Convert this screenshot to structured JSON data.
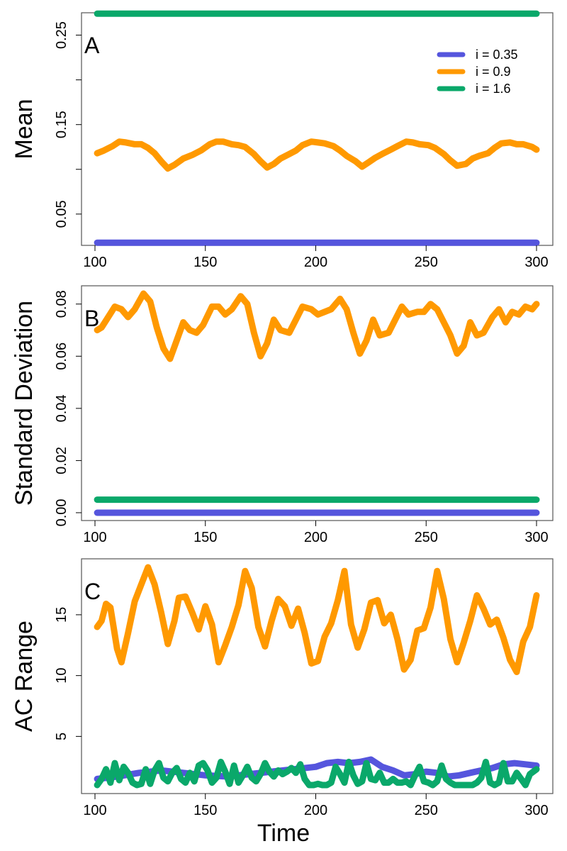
{
  "chart_data": [
    {
      "type": "line",
      "panel_label": "A",
      "ylabel": "Mean",
      "xlabel": "",
      "xlim": [
        100,
        300
      ],
      "ylim": [
        0.015,
        0.275
      ],
      "x_ticks": [
        100,
        150,
        200,
        250,
        300
      ],
      "y_ticks": [
        0.05,
        0.1,
        0.15,
        0.2,
        0.25
      ],
      "y_tick_labels": [
        "0.05",
        "",
        "0.15",
        "",
        "0.25"
      ],
      "legend": {
        "placement": "top-right",
        "entries": [
          "i = 0.35",
          "i = 0.9",
          "i = 1.6"
        ]
      },
      "series": [
        {
          "name": "i = 0.35",
          "color": "#5555dd",
          "x": [
            101,
            300
          ],
          "y": [
            0.018,
            0.018
          ]
        },
        {
          "name": "i = 0.9",
          "color": "#ff9900",
          "x": [
            101,
            104,
            108,
            111,
            114,
            118,
            121,
            124,
            127,
            130,
            133,
            136,
            140,
            144,
            148,
            152,
            155,
            158,
            162,
            165,
            168,
            172,
            175,
            178,
            181,
            184,
            188,
            191,
            194,
            198,
            201,
            204,
            208,
            211,
            214,
            218,
            221,
            224,
            227,
            230,
            234,
            237,
            241,
            244,
            247,
            251,
            254,
            258,
            261,
            264,
            268,
            271,
            274,
            278,
            281,
            284,
            288,
            291,
            294,
            298,
            300
          ],
          "y": [
            0.118,
            0.121,
            0.126,
            0.131,
            0.13,
            0.128,
            0.128,
            0.124,
            0.118,
            0.109,
            0.101,
            0.105,
            0.112,
            0.116,
            0.121,
            0.128,
            0.131,
            0.131,
            0.128,
            0.127,
            0.125,
            0.117,
            0.109,
            0.102,
            0.106,
            0.112,
            0.117,
            0.121,
            0.127,
            0.131,
            0.13,
            0.129,
            0.126,
            0.121,
            0.115,
            0.109,
            0.103,
            0.108,
            0.113,
            0.117,
            0.122,
            0.126,
            0.131,
            0.13,
            0.128,
            0.127,
            0.124,
            0.117,
            0.11,
            0.104,
            0.106,
            0.112,
            0.115,
            0.118,
            0.124,
            0.129,
            0.13,
            0.128,
            0.128,
            0.125,
            0.122
          ]
        },
        {
          "name": "i = 1.6",
          "color": "#0aa86a",
          "x": [
            101,
            300
          ],
          "y": [
            0.274,
            0.274
          ]
        }
      ]
    },
    {
      "type": "line",
      "panel_label": "B",
      "ylabel": "Standard  Deviation",
      "xlabel": "",
      "xlim": [
        100,
        300
      ],
      "ylim": [
        -0.003,
        0.087
      ],
      "x_ticks": [
        100,
        150,
        200,
        250,
        300
      ],
      "y_ticks": [
        0,
        0.02,
        0.04,
        0.06,
        0.08
      ],
      "y_tick_labels": [
        "0.00",
        "0.02",
        "0.04",
        "0.06",
        "0.08"
      ],
      "series": [
        {
          "name": "i = 0.35",
          "color": "#5555dd",
          "x": [
            101,
            300
          ],
          "y": [
            0.0,
            0.0
          ]
        },
        {
          "name": "i = 0.9",
          "color": "#ff9900",
          "x": [
            101,
            103,
            106,
            109,
            112,
            115,
            118,
            122,
            125,
            128,
            131,
            134,
            137,
            140,
            143,
            146,
            149,
            153,
            156,
            159,
            162,
            166,
            169,
            172,
            175,
            178,
            181,
            184,
            188,
            191,
            194,
            198,
            201,
            204,
            207,
            211,
            214,
            217,
            220,
            223,
            226,
            229,
            233,
            236,
            239,
            242,
            246,
            249,
            252,
            255,
            258,
            261,
            264,
            267,
            270,
            273,
            276,
            280,
            283,
            286,
            289,
            292,
            295,
            298,
            300
          ],
          "y": [
            0.07,
            0.071,
            0.075,
            0.079,
            0.078,
            0.075,
            0.078,
            0.084,
            0.081,
            0.071,
            0.063,
            0.059,
            0.066,
            0.073,
            0.07,
            0.069,
            0.072,
            0.079,
            0.079,
            0.076,
            0.078,
            0.083,
            0.08,
            0.069,
            0.06,
            0.065,
            0.074,
            0.07,
            0.069,
            0.074,
            0.079,
            0.078,
            0.076,
            0.077,
            0.078,
            0.082,
            0.078,
            0.069,
            0.061,
            0.066,
            0.074,
            0.068,
            0.069,
            0.074,
            0.079,
            0.076,
            0.077,
            0.077,
            0.08,
            0.078,
            0.073,
            0.068,
            0.061,
            0.064,
            0.073,
            0.068,
            0.069,
            0.075,
            0.078,
            0.073,
            0.077,
            0.076,
            0.079,
            0.078,
            0.08
          ]
        },
        {
          "name": "i = 1.6",
          "color": "#0aa86a",
          "x": [
            101,
            300
          ],
          "y": [
            0.005,
            0.005
          ]
        }
      ]
    },
    {
      "type": "line",
      "panel_label": "C",
      "ylabel": "AC  Range",
      "xlabel": "Time",
      "xlim": [
        100,
        300
      ],
      "ylim": [
        0.3,
        19.6
      ],
      "x_ticks": [
        100,
        150,
        200,
        250,
        300
      ],
      "y_ticks": [
        5,
        10,
        15
      ],
      "y_tick_labels": [
        "5",
        "10",
        "15"
      ],
      "series": [
        {
          "name": "i = 0.35",
          "color": "#5555dd",
          "x": [
            101,
            110,
            120,
            130,
            140,
            150,
            160,
            170,
            180,
            190,
            200,
            205,
            210,
            215,
            220,
            225,
            230,
            235,
            240,
            245,
            250,
            255,
            260,
            265,
            270,
            275,
            280,
            285,
            290,
            295,
            300
          ],
          "y": [
            1.5,
            1.7,
            2.0,
            2.2,
            2.0,
            1.8,
            1.7,
            1.9,
            2.1,
            2.3,
            2.5,
            2.8,
            2.9,
            2.8,
            2.9,
            3.1,
            2.5,
            2.2,
            1.8,
            1.9,
            2.1,
            2.0,
            1.7,
            1.8,
            2.0,
            2.2,
            2.4,
            2.7,
            2.8,
            2.7,
            2.6
          ]
        },
        {
          "name": "i = 0.9",
          "color": "#ff9900",
          "x": [
            101,
            103,
            105,
            107,
            110,
            112,
            115,
            118,
            121,
            124,
            127,
            130,
            133,
            136,
            138,
            141,
            144,
            147,
            150,
            153,
            156,
            159,
            162,
            165,
            168,
            171,
            174,
            177,
            180,
            183,
            186,
            189,
            192,
            195,
            198,
            201,
            204,
            207,
            210,
            213,
            216,
            219,
            222,
            225,
            228,
            231,
            234,
            237,
            240,
            243,
            246,
            249,
            252,
            255,
            258,
            261,
            264,
            267,
            270,
            273,
            276,
            279,
            282,
            285,
            288,
            291,
            294,
            297,
            300
          ],
          "y": [
            14.0,
            14.5,
            15.9,
            15.6,
            12.2,
            11.1,
            13.5,
            16.1,
            17.5,
            18.9,
            17.5,
            15.2,
            12.6,
            14.5,
            16.4,
            16.5,
            15.2,
            13.8,
            15.7,
            14.2,
            11.1,
            12.5,
            14.0,
            15.8,
            18.6,
            17.2,
            14.0,
            12.4,
            14.5,
            16.3,
            15.7,
            14.1,
            15.5,
            13.5,
            11.0,
            11.2,
            13.2,
            14.3,
            16.2,
            18.6,
            14.2,
            12.3,
            13.8,
            16.0,
            16.2,
            14.3,
            15.0,
            13.0,
            10.5,
            11.3,
            13.7,
            13.9,
            15.6,
            18.6,
            16.3,
            13.0,
            11.1,
            12.7,
            14.5,
            16.6,
            15.5,
            14.2,
            14.6,
            13.1,
            11.3,
            10.3,
            12.8,
            14.0,
            16.6
          ]
        },
        {
          "name": "i = 1.6",
          "color": "#0aa86a",
          "x": [
            101,
            103,
            105,
            107,
            109,
            111,
            113,
            115,
            117,
            119,
            121,
            123,
            125,
            127,
            129,
            131,
            133,
            135,
            137,
            139,
            141,
            143,
            145,
            147,
            149,
            151,
            153,
            155,
            157,
            159,
            161,
            163,
            165,
            167,
            169,
            171,
            173,
            175,
            177,
            179,
            181,
            183,
            185,
            187,
            189,
            191,
            193,
            195,
            197,
            199,
            201,
            203,
            205,
            207,
            209,
            211,
            213,
            215,
            217,
            219,
            221,
            223,
            225,
            227,
            229,
            231,
            233,
            235,
            237,
            239,
            241,
            243,
            245,
            247,
            249,
            251,
            253,
            255,
            257,
            259,
            261,
            263,
            265,
            267,
            269,
            271,
            273,
            275,
            277,
            279,
            281,
            283,
            285,
            287,
            289,
            291,
            293,
            295,
            297,
            300
          ],
          "y": [
            1.0,
            1.5,
            2.3,
            1.2,
            2.8,
            1.4,
            2.5,
            2.0,
            1.2,
            1.0,
            1.1,
            2.3,
            1.1,
            2.2,
            2.8,
            1.6,
            1.3,
            2.0,
            2.4,
            1.5,
            1.2,
            2.0,
            1.3,
            2.6,
            2.8,
            2.2,
            1.2,
            1.6,
            2.9,
            2.1,
            1.1,
            2.6,
            1.2,
            1.8,
            2.5,
            1.6,
            1.3,
            1.9,
            2.8,
            2.1,
            1.7,
            2.2,
            1.9,
            2.1,
            2.4,
            2.0,
            2.7,
            1.5,
            1.0,
            1.0,
            1.1,
            1.0,
            1.0,
            1.2,
            2.5,
            1.9,
            1.2,
            2.9,
            1.8,
            1.1,
            1.3,
            2.8,
            1.5,
            1.4,
            2.0,
            1.2,
            1.2,
            1.5,
            1.2,
            1.2,
            1.3,
            1.0,
            1.8,
            2.5,
            1.3,
            1.2,
            1.0,
            1.3,
            2.6,
            1.5,
            1.2,
            1.0,
            1.0,
            1.0,
            1.0,
            1.0,
            1.2,
            1.6,
            2.9,
            1.2,
            1.0,
            1.2,
            2.8,
            1.3,
            1.3,
            2.0,
            1.5,
            1.0,
            1.9,
            2.3
          ]
        }
      ]
    }
  ]
}
